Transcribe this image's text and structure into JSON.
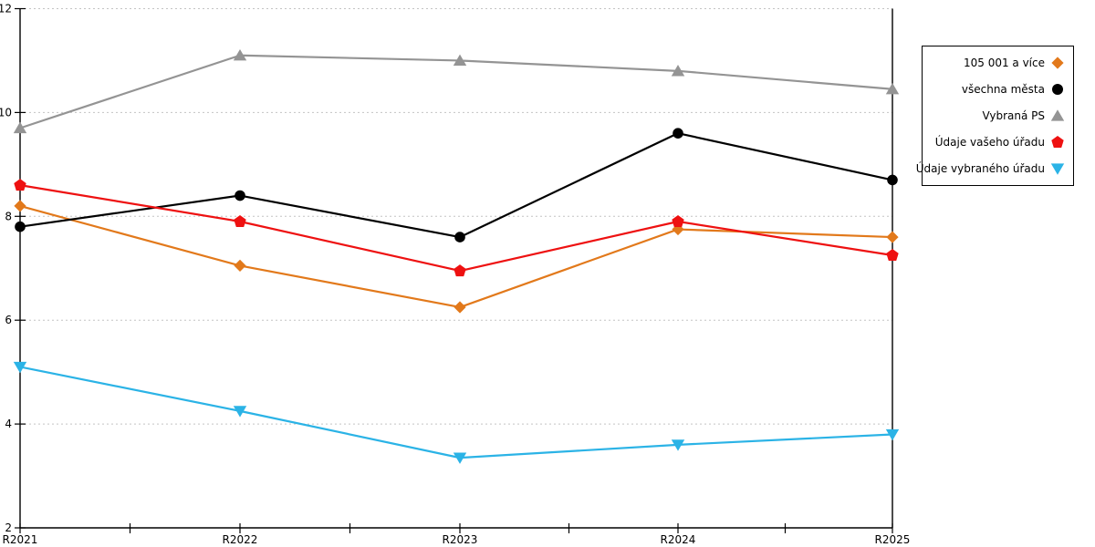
{
  "chart_data": {
    "type": "line",
    "title": "",
    "xlabel": "",
    "ylabel": "",
    "categories": [
      "R2021",
      "R2022",
      "R2023",
      "R2024",
      "R2025"
    ],
    "series": [
      {
        "name": "105 001 a více",
        "marker": "diamond",
        "color": "#E2791B",
        "values": [
          8.2,
          7.05,
          6.25,
          7.75,
          7.6
        ]
      },
      {
        "name": "všechna města",
        "marker": "circle",
        "color": "#000000",
        "values": [
          7.8,
          8.4,
          7.6,
          9.6,
          8.7
        ]
      },
      {
        "name": "Vybraná PS",
        "marker": "triangle-up",
        "color": "#949494",
        "values": [
          9.7,
          11.1,
          11.0,
          10.8,
          10.45
        ]
      },
      {
        "name": "Údaje vašeho úřadu",
        "marker": "pentagon",
        "color": "#EE1111",
        "values": [
          8.6,
          7.9,
          6.95,
          7.9,
          7.25
        ]
      },
      {
        "name": "Údaje vybraného úřadu",
        "marker": "triangle-down",
        "color": "#2BB3E6",
        "values": [
          5.1,
          4.25,
          3.35,
          3.6,
          3.8
        ]
      }
    ],
    "ylim": [
      2,
      12
    ],
    "yticks": [
      "2",
      "4",
      "6",
      "8",
      "10",
      "12"
    ],
    "grid": "horizontal-dashed",
    "legend_position": "outside-right"
  },
  "colors": {
    "axis": "#000000",
    "grid": "#c3c3c3",
    "background": "#ffffff",
    "legend_border": "#000000",
    "tick_label": "#000000"
  }
}
